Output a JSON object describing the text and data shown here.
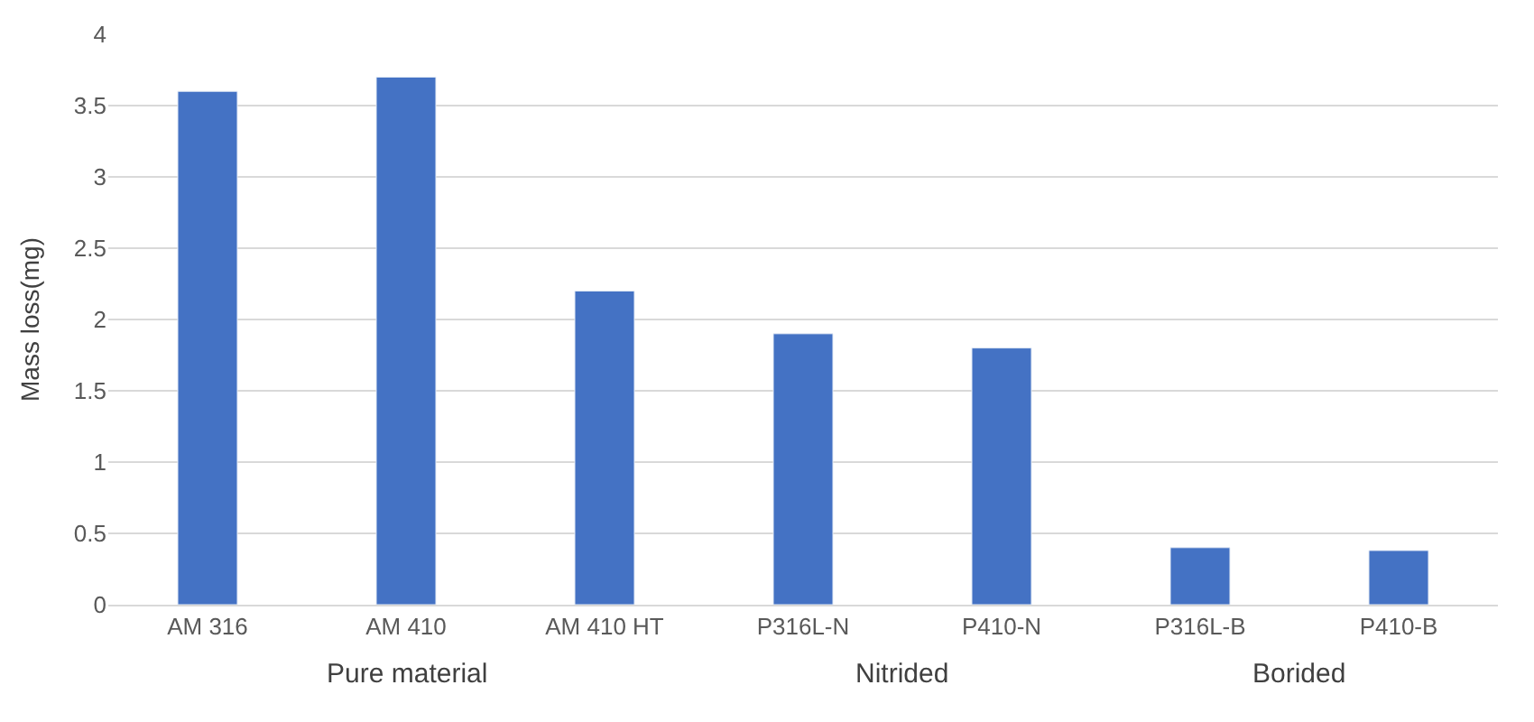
{
  "chart_data": {
    "type": "bar",
    "ylabel": "Mass loss(mg)",
    "categories": [
      "AM 316",
      "AM 410",
      "AM 410 HT",
      "P316L-N",
      "P410-N",
      "P316L-B",
      "P410-B"
    ],
    "values": [
      3.6,
      3.7,
      2.2,
      1.9,
      1.8,
      0.4,
      0.38
    ],
    "color": "#4472c4",
    "ylim": [
      0,
      4
    ],
    "yticks": [
      0,
      0.5,
      1,
      1.5,
      2,
      2.5,
      3,
      3.5,
      4
    ],
    "grid": "y",
    "annotations": [
      "Pure material",
      "Nitrided",
      "Borided"
    ]
  }
}
